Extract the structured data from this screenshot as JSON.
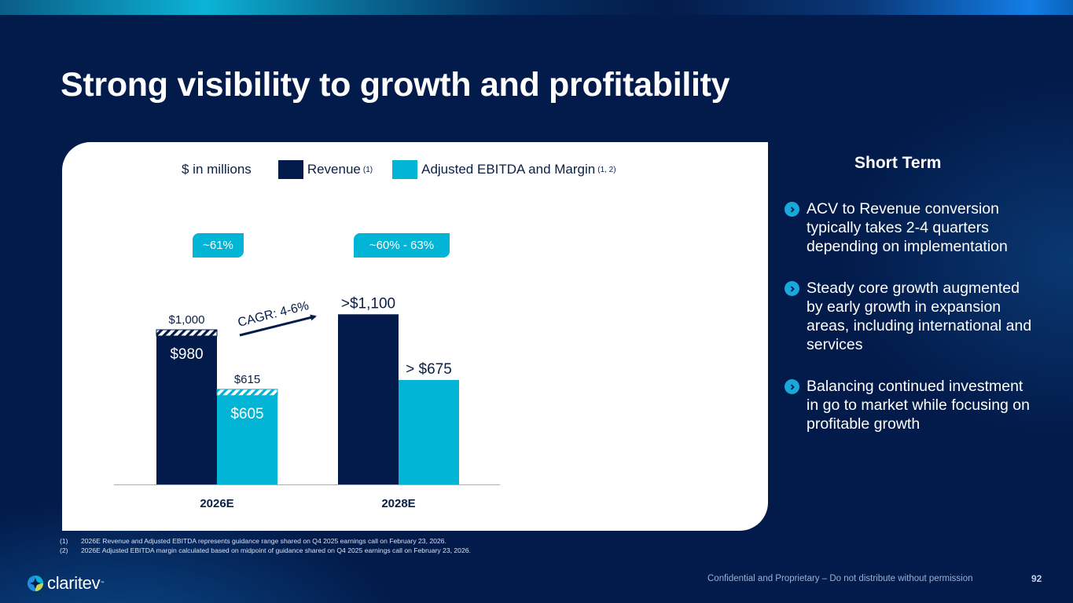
{
  "slide": {
    "title": "Strong visibility to growth and profitability",
    "page_number": "92",
    "confidential": "Confidential and Proprietary – Do not distribute without permission",
    "logo_text": "claritev",
    "logo_tm": "™"
  },
  "colors": {
    "navy": "#021b4b",
    "revenue": "#021b4b",
    "ebitda": "#02b4d6",
    "accent": "#1aa7d9"
  },
  "legend": {
    "units": "$ in millions",
    "items": [
      {
        "label": "Revenue",
        "note": "(1)"
      },
      {
        "label": "Adjusted EBITDA and Margin",
        "note": "(1, 2)"
      }
    ]
  },
  "chart_data": {
    "type": "bar",
    "title": "",
    "xlabel": "",
    "ylabel": "$ in millions",
    "categories": [
      "2026E",
      "2028E"
    ],
    "series": [
      {
        "name": "Revenue",
        "values": [
          980,
          1100
        ],
        "range_high": [
          1000,
          null
        ],
        "labels_inside": [
          "$980",
          ""
        ],
        "labels_top": [
          "$1,000",
          ">$1,100"
        ]
      },
      {
        "name": "Adjusted EBITDA",
        "values": [
          605,
          675
        ],
        "range_high": [
          615,
          null
        ],
        "labels_inside": [
          "$605",
          ""
        ],
        "labels_top": [
          "$615",
          "> $675"
        ]
      }
    ],
    "margins": [
      "~61%",
      "~60% - 63%"
    ],
    "annotation": "CAGR: 4-6%",
    "ylim": [
      0,
      1200
    ],
    "grid": false,
    "legend_position": "top"
  },
  "sidebar": {
    "title": "Short Term",
    "bullets": [
      "ACV to Revenue conversion typically takes 2-4 quarters depending on implementation",
      "Steady core growth augmented by early growth in expansion areas, including international and services",
      "Balancing continued investment in go to market while focusing on profitable growth"
    ]
  },
  "footnotes": [
    {
      "num": "(1)",
      "text": "2026E Revenue and Adjusted EBITDA represents guidance range shared on Q4 2025 earnings call on February 23, 2026."
    },
    {
      "num": "(2)",
      "text": "2026E Adjusted EBITDA margin calculated  based on midpoint of guidance shared on Q4 2025 earnings call on February 23, 2026."
    }
  ]
}
